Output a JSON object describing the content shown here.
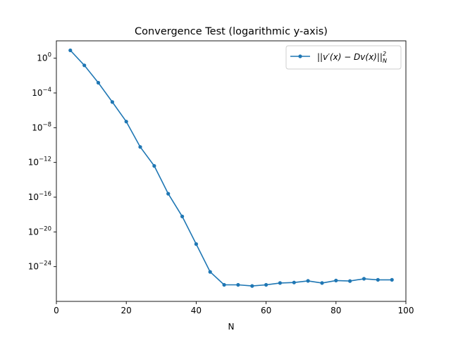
{
  "chart_data": {
    "type": "line",
    "title": "Convergence Test (logarithmic y-axis)",
    "xlabel": "N",
    "ylabel": "",
    "x_scale": "linear",
    "y_scale": "log",
    "xlim": [
      0,
      100
    ],
    "ylim": [
      1e-28,
      100.0
    ],
    "grid": false,
    "legend_position": "top-right",
    "x_ticks": [
      0,
      20,
      40,
      60,
      80,
      100
    ],
    "x_tick_labels": [
      "0",
      "20",
      "40",
      "60",
      "80",
      "100"
    ],
    "y_tick_exponents": [
      0,
      -4,
      -8,
      -12,
      -16,
      -20,
      -24
    ],
    "y_tick_labels": [
      "10^0",
      "10^-4",
      "10^-8",
      "10^-12",
      "10^-16",
      "10^-20",
      "10^-24"
    ],
    "series": [
      {
        "name": "||v'(x) − Dv(x)||²_N",
        "color": "#1f77b4",
        "x": [
          4,
          8,
          12,
          16,
          20,
          24,
          28,
          32,
          36,
          40,
          44,
          48,
          52,
          56,
          60,
          64,
          68,
          72,
          76,
          80,
          84,
          88,
          92,
          96
        ],
        "y": [
          8,
          0.15,
          0.0015,
          9e-06,
          5e-08,
          6e-11,
          4e-13,
          2.5e-16,
          6e-19,
          4e-22,
          2.5e-25,
          8e-27,
          8e-27,
          6e-27,
          8e-27,
          1.3e-26,
          1.5e-26,
          2.3e-26,
          1.3e-26,
          2.5e-26,
          2.2e-26,
          4e-26,
          3e-26,
          3e-26
        ]
      }
    ]
  }
}
